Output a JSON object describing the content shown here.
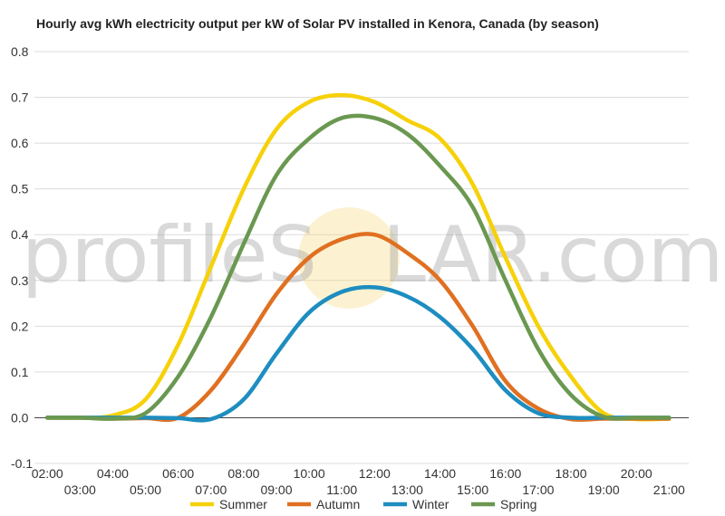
{
  "chart_data": {
    "type": "line",
    "title": "Hourly avg kWh electricity output per kW of Solar PV installed in Kenora, Canada (by season)",
    "xlabel": "",
    "ylabel": "",
    "ylim": [
      -0.1,
      0.8
    ],
    "yticks": [
      "-0.1",
      "0.0",
      "0.1",
      "0.2",
      "0.3",
      "0.4",
      "0.5",
      "0.6",
      "0.7",
      "0.8"
    ],
    "x": [
      2,
      3,
      4,
      5,
      6,
      7,
      8,
      9,
      10,
      11,
      12,
      13,
      14,
      15,
      16,
      17,
      18,
      19,
      20,
      21
    ],
    "xticks_upper": [
      "02:00",
      "04:00",
      "06:00",
      "08:00",
      "10:00",
      "12:00",
      "14:00",
      "16:00",
      "18:00",
      "20:00"
    ],
    "xticks_lower": [
      "03:00",
      "05:00",
      "07:00",
      "09:00",
      "11:00",
      "13:00",
      "15:00",
      "17:00",
      "19:00",
      "21:00"
    ],
    "grid": true,
    "legend_position": "bottom",
    "watermark": {
      "left": "profileS",
      "right": "LAR.com"
    },
    "series": [
      {
        "name": "Summer",
        "color": "#f6d10a",
        "values": [
          0.0,
          0.0,
          0.005,
          0.04,
          0.16,
          0.33,
          0.5,
          0.63,
          0.69,
          0.705,
          0.69,
          0.65,
          0.61,
          0.51,
          0.35,
          0.2,
          0.09,
          0.01,
          -0.003,
          -0.002
        ]
      },
      {
        "name": "Autumn",
        "color": "#e07021",
        "values": [
          0.0,
          0.0,
          -0.002,
          -0.001,
          0.0,
          0.06,
          0.16,
          0.27,
          0.35,
          0.39,
          0.4,
          0.36,
          0.3,
          0.2,
          0.08,
          0.02,
          -0.003,
          -0.002,
          -0.002,
          -0.002
        ]
      },
      {
        "name": "Winter",
        "color": "#1e8dc0",
        "values": [
          0.0,
          0.0,
          0.0,
          0.0,
          -0.001,
          -0.003,
          0.04,
          0.14,
          0.23,
          0.275,
          0.285,
          0.265,
          0.22,
          0.15,
          0.06,
          0.01,
          0.0,
          0.0,
          0.0,
          0.0
        ]
      },
      {
        "name": "Spring",
        "color": "#6a9850",
        "values": [
          0.0,
          0.0,
          -0.002,
          0.01,
          0.09,
          0.22,
          0.38,
          0.53,
          0.61,
          0.655,
          0.655,
          0.62,
          0.55,
          0.46,
          0.3,
          0.15,
          0.05,
          0.002,
          0.0,
          0.0
        ]
      }
    ]
  }
}
